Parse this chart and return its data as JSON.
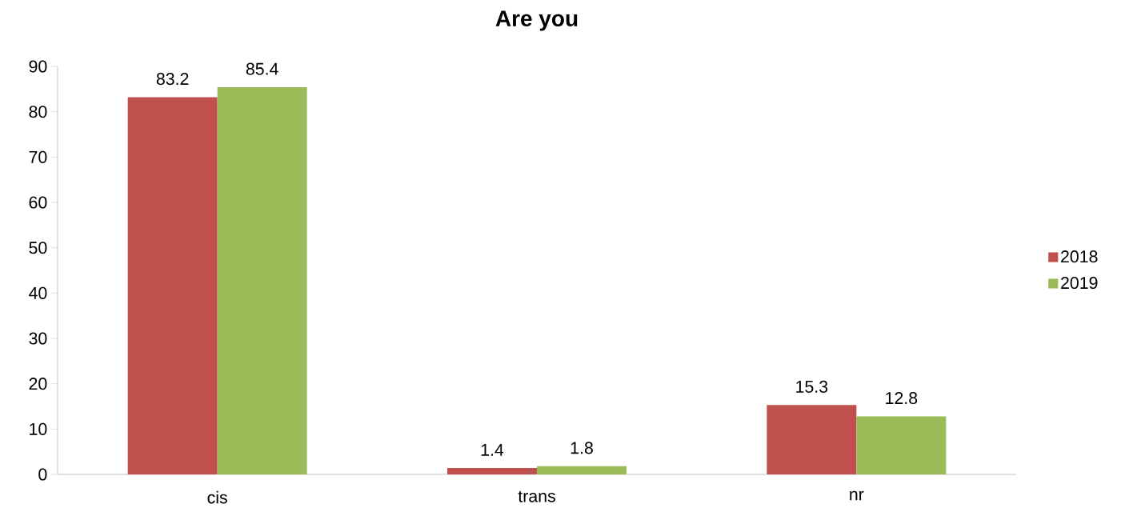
{
  "chart_data": {
    "type": "bar",
    "title": "Are you",
    "categories": [
      "cis",
      "trans",
      "nr"
    ],
    "series": [
      {
        "name": "2018",
        "color": "#c0504d",
        "values": [
          83.2,
          1.4,
          15.3
        ]
      },
      {
        "name": "2019",
        "color": "#9bbb59",
        "values": [
          85.4,
          1.8,
          12.8
        ]
      }
    ],
    "ylim": [
      0,
      90
    ],
    "yticks": [
      0,
      10,
      20,
      30,
      40,
      50,
      60,
      70,
      80,
      90
    ],
    "grid": false,
    "legend": "right",
    "data_labels": true
  }
}
